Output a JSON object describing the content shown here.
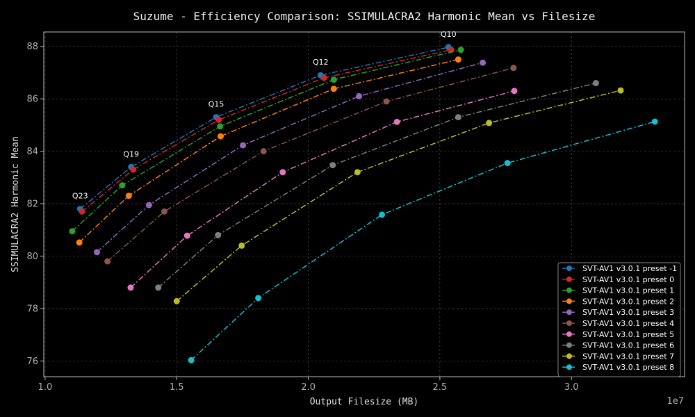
{
  "chart_data": {
    "type": "line",
    "title": "Suzume - Efficiency Comparison: SSIMULACRA2 Harmonic Mean vs Filesize",
    "xlabel": "Output Filesize (MB)",
    "ylabel": "SSIMULACRA2 Harmonic Mean",
    "x_offset_label": "1e7",
    "xlim": [
      0.995,
      3.43
    ],
    "ylim": [
      75.4,
      88.55
    ],
    "xticks": [
      1.0,
      1.5,
      2.0,
      2.5,
      3.0
    ],
    "xtick_labels": [
      "1.0",
      "1.5",
      "2.0",
      "2.5",
      "3.0"
    ],
    "yticks": [
      76,
      78,
      80,
      82,
      84,
      86,
      88
    ],
    "ytick_labels": [
      "76",
      "78",
      "80",
      "82",
      "84",
      "86",
      "88"
    ],
    "grid": true,
    "legend_position": "bottom-right",
    "series": [
      {
        "name": "SVT-AV1 v3.0.1 preset -1",
        "color": "#1f77b4",
        "x": [
          1.133,
          1.327,
          1.65,
          2.047,
          2.533
        ],
        "y": [
          81.8,
          83.4,
          85.3,
          86.9,
          87.97
        ]
      },
      {
        "name": "SVT-AV1 v3.0.1 preset 0",
        "color": "#d62728",
        "x": [
          1.14,
          1.335,
          1.66,
          2.06,
          2.543
        ],
        "y": [
          81.7,
          83.3,
          85.2,
          86.8,
          87.87
        ]
      },
      {
        "name": "SVT-AV1 v3.0.1 preset 1",
        "color": "#2ca02c",
        "x": [
          1.103,
          1.293,
          1.665,
          2.097,
          2.58
        ],
        "y": [
          80.95,
          82.7,
          84.95,
          86.73,
          87.87
        ]
      },
      {
        "name": "SVT-AV1 v3.0.1 preset 2",
        "color": "#ff7f0e",
        "x": [
          1.13,
          1.318,
          1.667,
          2.097,
          2.57
        ],
        "y": [
          80.52,
          82.3,
          84.57,
          86.38,
          87.5
        ]
      },
      {
        "name": "SVT-AV1 v3.0.1 preset 3",
        "color": "#9467bd",
        "x": [
          1.197,
          1.395,
          1.752,
          2.193,
          2.663
        ],
        "y": [
          80.15,
          81.95,
          84.23,
          86.1,
          87.38
        ]
      },
      {
        "name": "SVT-AV1 v3.0.1 preset 4",
        "color": "#8c564b",
        "x": [
          1.237,
          1.453,
          1.83,
          2.297,
          2.78
        ],
        "y": [
          79.8,
          81.7,
          84.0,
          85.9,
          87.18
        ]
      },
      {
        "name": "SVT-AV1 v3.0.1 preset 5",
        "color": "#e377c2",
        "x": [
          1.325,
          1.54,
          1.903,
          2.337,
          2.783
        ],
        "y": [
          78.8,
          80.78,
          83.2,
          85.12,
          86.3
        ]
      },
      {
        "name": "SVT-AV1 v3.0.1 preset 6",
        "color": "#7f7f7f",
        "x": [
          1.43,
          1.657,
          2.093,
          2.57,
          3.093
        ],
        "y": [
          78.8,
          80.8,
          83.47,
          85.3,
          86.6
        ]
      },
      {
        "name": "SVT-AV1 v3.0.1 preset 7",
        "color": "#bcbd22",
        "x": [
          1.5,
          1.747,
          2.187,
          2.687,
          3.187
        ],
        "y": [
          78.28,
          80.4,
          83.2,
          85.08,
          86.32
        ]
      },
      {
        "name": "SVT-AV1 v3.0.1 preset 8",
        "color": "#17becf",
        "x": [
          1.555,
          1.81,
          2.28,
          2.757,
          3.317
        ],
        "y": [
          76.03,
          78.4,
          81.58,
          83.55,
          85.13
        ]
      }
    ],
    "annotations": [
      {
        "text": "Q23",
        "x": 1.133,
        "y": 81.8
      },
      {
        "text": "Q19",
        "x": 1.327,
        "y": 83.4
      },
      {
        "text": "Q15",
        "x": 1.65,
        "y": 85.3
      },
      {
        "text": "Q12",
        "x": 2.047,
        "y": 86.9
      },
      {
        "text": "Q10",
        "x": 2.533,
        "y": 87.97
      }
    ]
  }
}
